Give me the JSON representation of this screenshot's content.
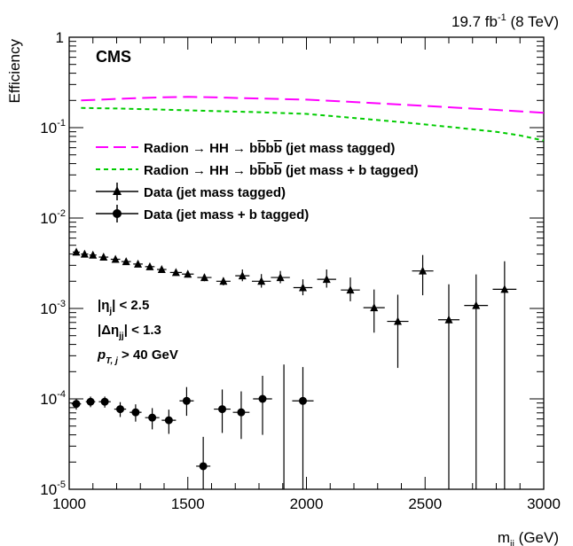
{
  "chart_data": {
    "type": "scatter",
    "title": "",
    "lumi_label": "19.7 fb",
    "lumi_sup": "-1",
    "lumi_energy": "(8 TeV)",
    "experiment": "CMS",
    "xlabel": "m",
    "xlabel_sub": "jj",
    "xlabel_unit": "(GeV)",
    "ylabel": "Efficiency",
    "xlim": [
      1000,
      3000
    ],
    "ylim": [
      1e-05,
      1
    ],
    "yscale": "log",
    "x_ticks": [
      "1000",
      "1500",
      "2000",
      "2500",
      "3000"
    ],
    "y_ticks": [
      {
        "base": "1",
        "exp": ""
      },
      {
        "base": "10",
        "exp": "-1"
      },
      {
        "base": "10",
        "exp": "-2"
      },
      {
        "base": "10",
        "exp": "-3"
      },
      {
        "base": "10",
        "exp": "-4"
      },
      {
        "base": "10",
        "exp": "-5"
      }
    ],
    "grid": false,
    "legend_position": "middle-left",
    "legend": [
      {
        "pre": "Radion → HH → b",
        "bb": "b",
        "mid": "b",
        "bb2": "b",
        "post": " (jet mass tagged)"
      },
      {
        "pre": "Radion → HH → b",
        "bb": "b",
        "mid": "b",
        "bb2": "b",
        "post": " (jet mass + b tagged)"
      },
      {
        "text": "Data (jet mass tagged)"
      },
      {
        "text": "Data (jet mass + b tagged)"
      }
    ],
    "cuts": [
      {
        "pre": "|η",
        "sub": "j",
        "post": "| < 2.5"
      },
      {
        "pre": "|Δη",
        "sub": "jj",
        "post": "| < 1.3"
      },
      {
        "pre": "p",
        "sub": "T, j",
        "post": " > 40 GeV"
      }
    ],
    "series": [
      {
        "kind": "curve",
        "color": "#ff00ff",
        "style": "long-dash",
        "x": [
          1050,
          1200,
          1300,
          1400,
          1500,
          1600,
          1700,
          1800,
          1900,
          2000,
          2200,
          2400,
          2600,
          2800,
          3000
        ],
        "y": [
          0.2,
          0.208,
          0.213,
          0.217,
          0.219,
          0.217,
          0.213,
          0.21,
          0.207,
          0.204,
          0.192,
          0.18,
          0.168,
          0.157,
          0.146
        ]
      },
      {
        "kind": "curve",
        "color": "#00cc00",
        "style": "short-dash",
        "x": [
          1050,
          1200,
          1400,
          1600,
          1800,
          2000,
          2200,
          2400,
          2600,
          2800,
          2900,
          3000
        ],
        "y": [
          0.165,
          0.163,
          0.158,
          0.153,
          0.148,
          0.142,
          0.128,
          0.115,
          0.102,
          0.09,
          0.082,
          0.072
        ]
      },
      {
        "kind": "points",
        "marker": "triangle",
        "x": [
          1030,
          1065,
          1100,
          1145,
          1195,
          1240,
          1290,
          1340,
          1390,
          1450,
          1500,
          1570,
          1650,
          1730,
          1810,
          1890,
          1985,
          2085,
          2185,
          2285,
          2385,
          2490,
          2600,
          2715,
          2835
        ],
        "y": [
          0.0042,
          0.004,
          0.0039,
          0.0037,
          0.0035,
          0.0033,
          0.0031,
          0.0029,
          0.0027,
          0.0025,
          0.0024,
          0.0022,
          0.002,
          0.0023,
          0.002,
          0.0022,
          0.0017,
          0.0021,
          0.0016,
          0.00102,
          0.00072,
          0.0026,
          0.00075,
          0.00108,
          0.00163
        ],
        "xerr": [
          15,
          15,
          15,
          20,
          20,
          20,
          20,
          20,
          20,
          25,
          25,
          30,
          30,
          30,
          40,
          40,
          40,
          40,
          40,
          45,
          45,
          45,
          45,
          50,
          50
        ],
        "yerr_lo": [
          0.0002,
          0.0002,
          0.0002,
          0.0002,
          0.0002,
          0.0002,
          0.0002,
          0.0002,
          0.0002,
          0.0002,
          0.0002,
          0.0002,
          0.0002,
          0.0003,
          0.0003,
          0.0003,
          0.0003,
          0.0004,
          0.0004,
          0.00048,
          0.0005,
          0.0012,
          0.00074,
          0.00107,
          0.00162
        ],
        "yerr_hi": [
          0.0002,
          0.0002,
          0.0002,
          0.0002,
          0.0002,
          0.0002,
          0.0002,
          0.0002,
          0.0002,
          0.0002,
          0.0002,
          0.0002,
          0.0002,
          0.0004,
          0.0004,
          0.0004,
          0.0004,
          0.0006,
          0.0006,
          0.0006,
          0.0007,
          0.0013,
          0.0011,
          0.0013,
          0.0017
        ]
      },
      {
        "kind": "points",
        "marker": "circle",
        "x": [
          1030,
          1090,
          1150,
          1215,
          1280,
          1350,
          1420,
          1495,
          1565,
          1645,
          1725,
          1815,
          1985
        ],
        "y": [
          8.8e-05,
          9.3e-05,
          9.3e-05,
          7.7e-05,
          7.1e-05,
          6.2e-05,
          5.8e-05,
          9.5e-05,
          1.8e-05,
          7.7e-05,
          7.1e-05,
          0.0001,
          9.5e-05
        ],
        "xerr": [
          20,
          20,
          25,
          25,
          25,
          30,
          30,
          30,
          30,
          35,
          35,
          40,
          45
        ],
        "yerr_lo": [
          1.2e-05,
          1.2e-05,
          1.3e-05,
          1.4e-05,
          1.5e-05,
          1.6e-05,
          1.7e-05,
          3e-05,
          1.1e-05,
          3.5e-05,
          3.5e-05,
          6e-05,
          9.4e-05
        ],
        "yerr_hi": [
          1.2e-05,
          1.3e-05,
          1.3e-05,
          1.5e-05,
          1.6e-05,
          1.7e-05,
          1.8e-05,
          4e-05,
          2e-05,
          5e-05,
          5e-05,
          8e-05,
          0.00013
        ],
        "extra_errbars": [
          {
            "x": 1905,
            "xerr": 40,
            "ylo": 1e-05,
            "yhi": 0.00024
          }
        ]
      }
    ]
  }
}
